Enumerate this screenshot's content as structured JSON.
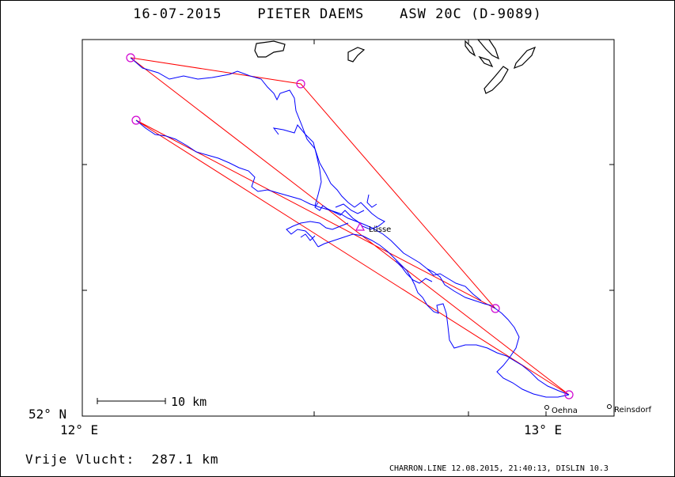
{
  "header": {
    "title": "16-07-2015    PIETER DAEMS    ASW 20C (D-9089)"
  },
  "axes": {
    "lat_label": "52° N",
    "lon_left_label": "12° E",
    "lon_right_label": "13° E"
  },
  "scale_bar": {
    "label": "10 km"
  },
  "places": [
    {
      "name": "Lüsse"
    },
    {
      "name": "Oehna"
    },
    {
      "name": "Reinsdorf"
    }
  ],
  "flight": {
    "label": "Vrije Vlucht:  287.1 km"
  },
  "footer": {
    "text": "CHARRON.LINE 12.08.2015, 21:40:13, DISLIN 10.3"
  },
  "colors": {
    "task_line": "#ff0000",
    "track": "#0000ff",
    "turnpoint": "#d000d0",
    "frame": "#000000"
  }
}
